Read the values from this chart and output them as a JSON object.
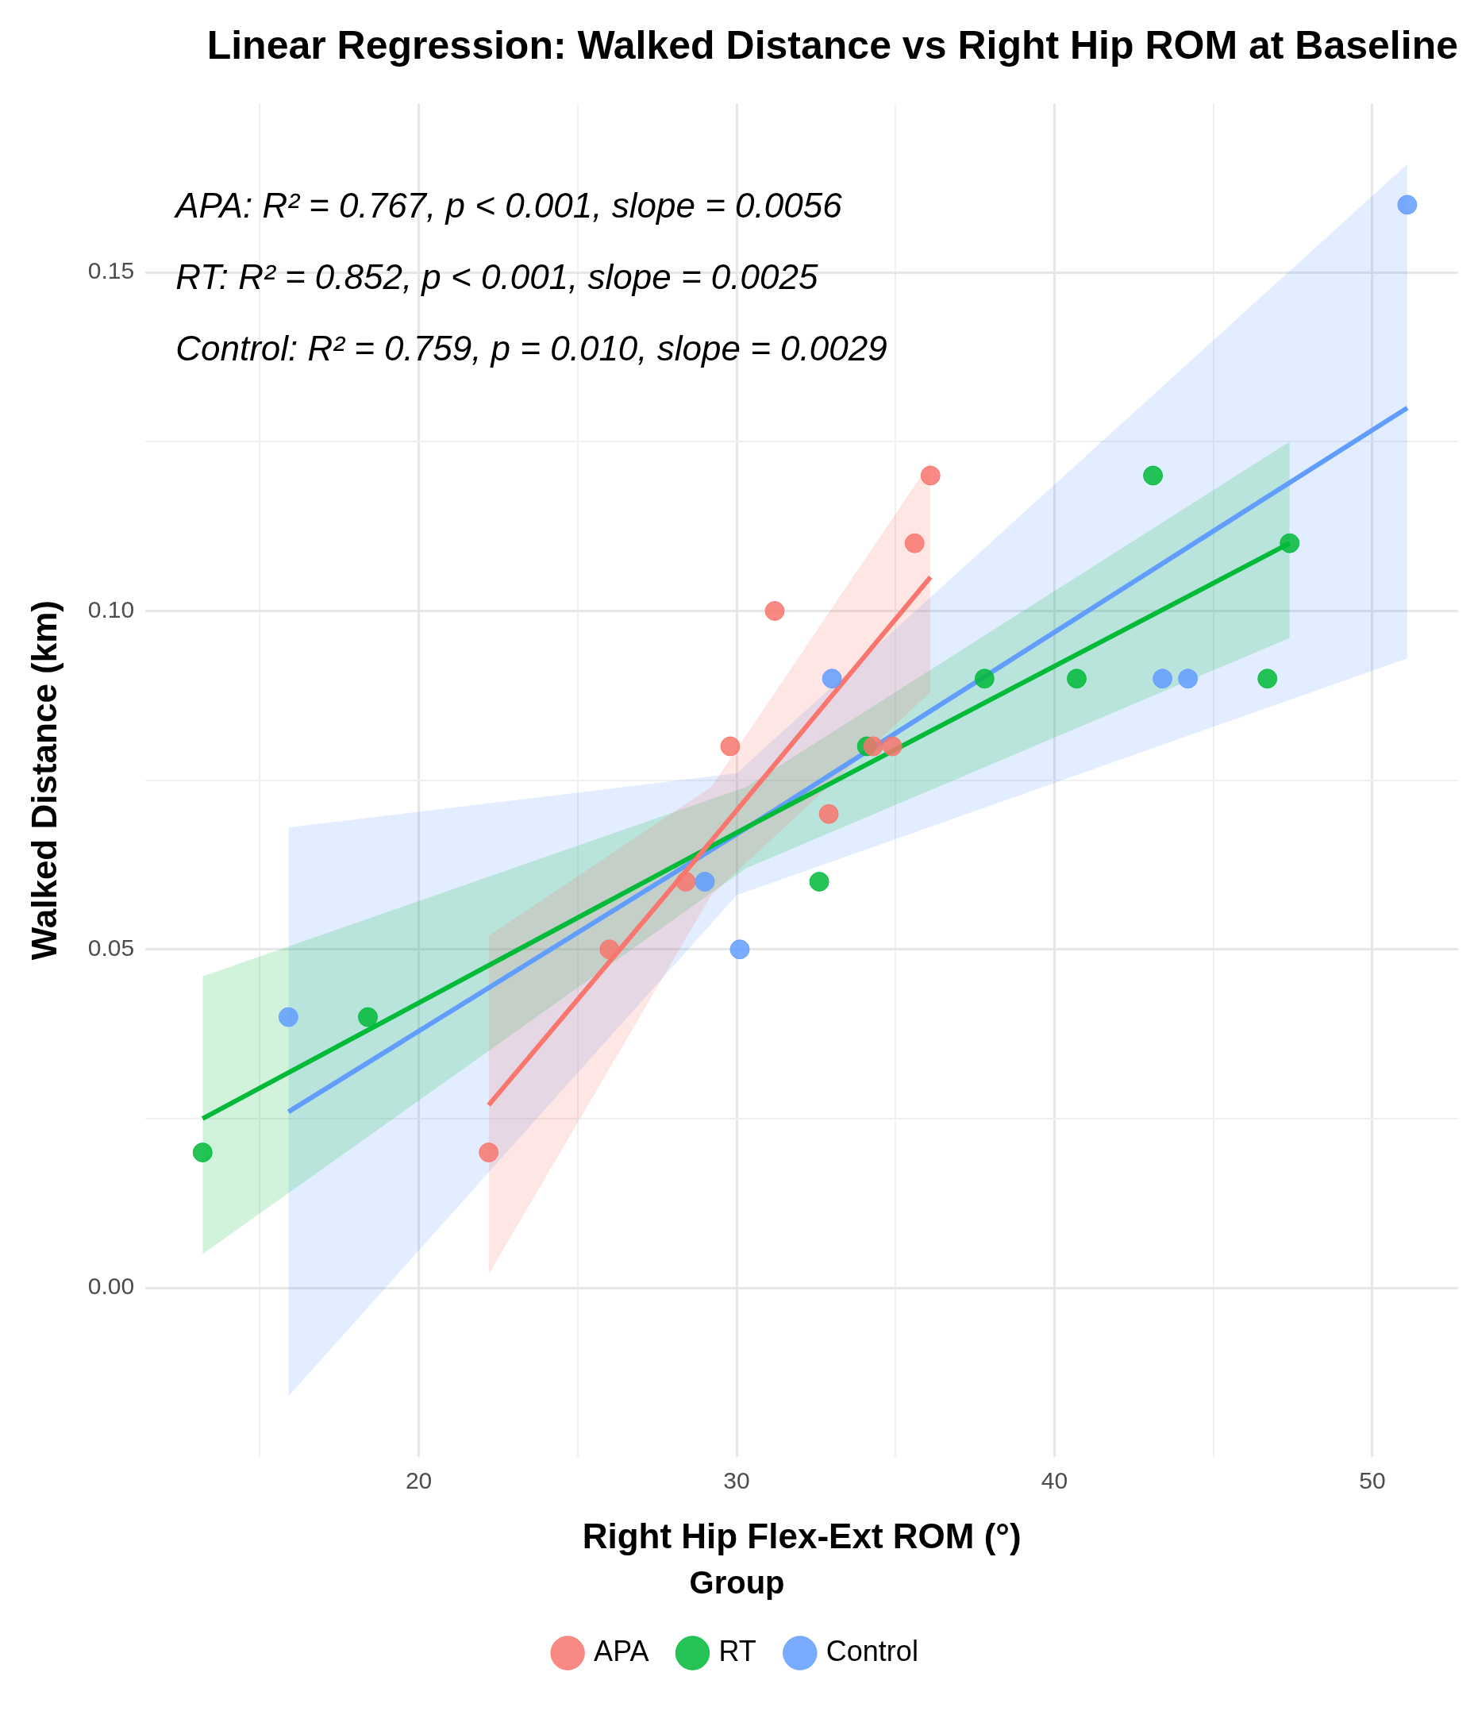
{
  "chart_data": {
    "type": "scatter",
    "title": "Linear Regression: Walked Distance vs Right Hip ROM at Baseline",
    "xlabel": "Right Hip Flex-Ext ROM (°)",
    "ylabel": "Walked Distance (km)",
    "legend_title": "Group",
    "annotations": [
      "APA: R² = 0.767, p < 0.001, slope = 0.0056",
      "RT: R² = 0.852, p < 0.001, slope = 0.0025",
      "Control: R² = 0.759, p = 0.010, slope = 0.0029"
    ],
    "xlim": [
      11.4,
      52.7
    ],
    "xticks": [
      {
        "value": 15,
        "label": null
      },
      20,
      {
        "value": 25,
        "label": null
      },
      30,
      {
        "value": 35,
        "label": null
      },
      40,
      {
        "value": 45,
        "label": null
      },
      50
    ],
    "ylim": [
      -0.025,
      0.175
    ],
    "yticks": [
      {
        "value": 0,
        "label": "0.00"
      },
      {
        "value": 0.025,
        "label": null
      },
      {
        "value": 0.05,
        "label": "0.05"
      },
      {
        "value": 0.075,
        "label": null
      },
      {
        "value": 0.1,
        "label": "0.10"
      },
      {
        "value": 0.125,
        "label": null
      },
      {
        "value": 0.15,
        "label": "0.15"
      }
    ],
    "grid": true,
    "legend": "bottom",
    "marker": "circle",
    "series": [
      {
        "type": "line",
        "marker": "none",
        "color": "#f8766d",
        "x": [
          22.2,
          29.2,
          36.1
        ],
        "values": [
          0.027,
          0.066,
          0.105
        ],
        "lower": [
          0.002,
          0.058,
          0.088
        ],
        "upper": [
          0.052,
          0.074,
          0.122
        ]
      },
      {
        "type": "line",
        "marker": "none",
        "color": "#00ba38",
        "x": [
          13.2,
          30.3,
          47.4
        ],
        "values": [
          0.025,
          0.068,
          0.11
        ],
        "lower": [
          0.005,
          0.062,
          0.096
        ],
        "upper": [
          0.046,
          0.074,
          0.125
        ]
      },
      {
        "type": "line",
        "marker": "none",
        "color": "#619cff",
        "x": [
          15.9,
          30,
          51.1
        ],
        "values": [
          0.026,
          0.067,
          0.13
        ],
        "lower": [
          -0.016,
          0.058,
          0.093
        ],
        "upper": [
          0.068,
          0.076,
          0.166
        ]
      },
      {
        "name": "APA",
        "color": "#f8766d",
        "x": [
          22.2,
          26.0,
          28.4,
          29.8,
          31.2,
          32.9,
          34.3,
          34.9,
          35.6,
          36.1
        ],
        "values": [
          0.02,
          0.05,
          0.06,
          0.08,
          0.1,
          0.07,
          0.08,
          0.08,
          0.11,
          0.12
        ]
      },
      {
        "name": "RT",
        "color": "#00ba38",
        "x": [
          13.2,
          18.4,
          32.6,
          34.1,
          37.8,
          40.7,
          43.1,
          46.7,
          47.4
        ],
        "values": [
          0.02,
          0.04,
          0.06,
          0.08,
          0.09,
          0.09,
          0.12,
          0.09,
          0.11
        ]
      },
      {
        "name": "Control",
        "color": "#619cff",
        "x": [
          15.9,
          29.0,
          30.1,
          33.0,
          43.4,
          44.2,
          51.1
        ],
        "values": [
          0.04,
          0.06,
          0.05,
          0.09,
          0.09,
          0.09,
          0.16
        ]
      }
    ]
  }
}
